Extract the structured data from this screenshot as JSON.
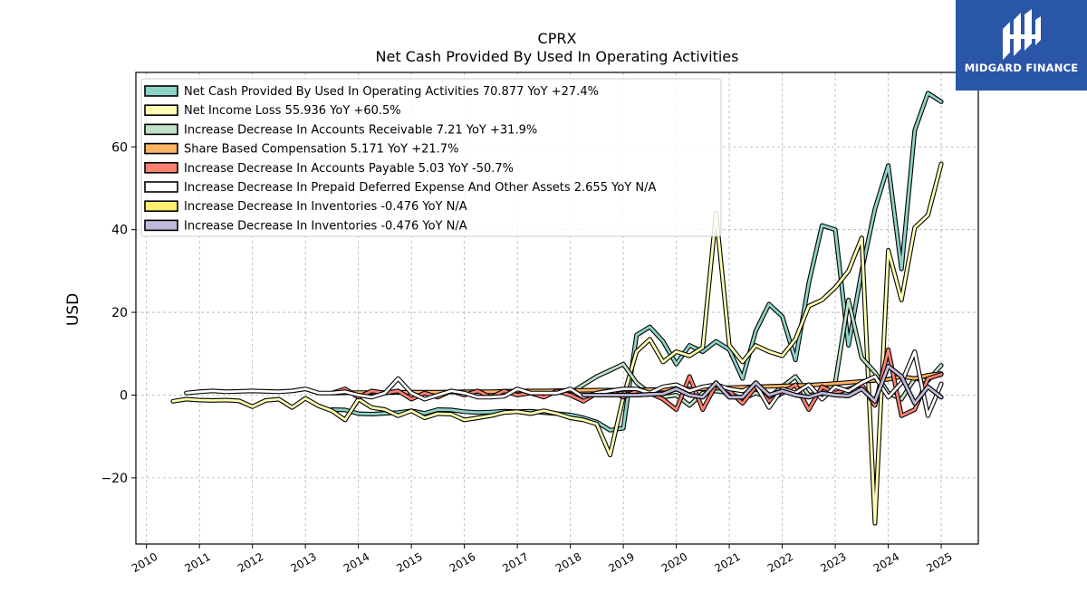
{
  "brand": {
    "name": "MIDGARD FINANCE",
    "bg_color": "#2a56a8",
    "icon": "midgard-logo-icon"
  },
  "chart_data": {
    "type": "line",
    "title": "CPRX",
    "subtitle": "Net Cash Provided By Used In Operating Activities",
    "xlabel": "",
    "ylabel": "USD",
    "xlim": [
      2009.8,
      2025.7
    ],
    "ylim": [
      -36,
      78
    ],
    "x_ticks": [
      "2010",
      "2011",
      "2012",
      "2013",
      "2014",
      "2015",
      "2016",
      "2017",
      "2018",
      "2019",
      "2020",
      "2021",
      "2022",
      "2023",
      "2024",
      "2025"
    ],
    "y_ticks": [
      -20,
      0,
      20,
      40,
      60
    ],
    "y_tick_labels": [
      "−20",
      "0",
      "20",
      "40",
      "60"
    ],
    "grid": true,
    "legend_position": "top-left",
    "series": [
      {
        "name": "Net Cash Provided By Used In Operating Activities",
        "legend_label": "Net Cash Provided By Used In Operating Activities  70.877 YoY +27.4%",
        "color": "#8dd3c7",
        "x": [
          2013.5,
          2013.75,
          2014.0,
          2014.25,
          2014.5,
          2014.75,
          2015.0,
          2015.25,
          2015.5,
          2015.75,
          2016.0,
          2016.25,
          2016.5,
          2016.75,
          2017.0,
          2017.25,
          2017.5,
          2017.75,
          2018.0,
          2018.25,
          2018.5,
          2018.75,
          2019.0,
          2019.25,
          2019.5,
          2019.75,
          2020.0,
          2020.25,
          2020.5,
          2020.75,
          2021.0,
          2021.25,
          2021.5,
          2021.75,
          2022.0,
          2022.25,
          2022.5,
          2022.75,
          2023.0,
          2023.25,
          2023.5,
          2023.75,
          2024.0,
          2024.25,
          2024.5,
          2024.75,
          2025.0
        ],
        "y": [
          -3.5,
          -3.6,
          -4.5,
          -4.6,
          -4.4,
          -4.2,
          -3.8,
          -4.4,
          -3.5,
          -3.6,
          -4.0,
          -4.2,
          -4.1,
          -3.9,
          -4.0,
          -3.9,
          -4.2,
          -4.5,
          -4.8,
          -5.5,
          -6.5,
          -8.5,
          -8.0,
          14.5,
          16.5,
          13.0,
          7.5,
          12.0,
          10.5,
          13.0,
          11.0,
          4.0,
          15.5,
          22.0,
          19.0,
          8.5,
          27.0,
          41.0,
          40.0,
          12.0,
          30.0,
          45.0,
          55.5,
          30.5,
          64.0,
          73.0,
          70.9
        ]
      },
      {
        "name": "Net Income Loss",
        "legend_label": "Net Income Loss  55.936 YoY +60.5%",
        "color": "#ffffb3",
        "x": [
          2010.5,
          2010.75,
          2011.0,
          2011.25,
          2011.5,
          2011.75,
          2012.0,
          2012.25,
          2012.5,
          2012.75,
          2013.0,
          2013.25,
          2013.5,
          2013.75,
          2014.0,
          2014.25,
          2014.5,
          2014.75,
          2015.0,
          2015.25,
          2015.5,
          2015.75,
          2016.0,
          2016.25,
          2016.5,
          2016.75,
          2017.0,
          2017.25,
          2017.5,
          2017.75,
          2018.0,
          2018.25,
          2018.5,
          2018.75,
          2019.0,
          2019.25,
          2019.5,
          2019.75,
          2020.0,
          2020.25,
          2020.5,
          2020.75,
          2021.0,
          2021.25,
          2021.5,
          2021.75,
          2022.0,
          2022.25,
          2022.5,
          2022.75,
          2023.0,
          2023.25,
          2023.5,
          2023.75,
          2024.0,
          2024.25,
          2024.5,
          2024.75,
          2025.0
        ],
        "y": [
          -1.5,
          -1.0,
          -1.2,
          -1.3,
          -1.2,
          -1.4,
          -2.8,
          -1.3,
          -1.0,
          -3.0,
          -0.8,
          -2.6,
          -3.8,
          -6.0,
          -1.0,
          -3.0,
          -3.5,
          -5.0,
          -3.8,
          -5.5,
          -4.5,
          -4.6,
          -6.0,
          -5.5,
          -5.0,
          -4.2,
          -4.0,
          -4.5,
          -3.8,
          -4.5,
          -5.5,
          -6.0,
          -7.0,
          -14.5,
          -0.5,
          10.5,
          13.5,
          8.0,
          10.5,
          9.5,
          11.5,
          44.0,
          12.0,
          8.0,
          12.0,
          10.5,
          9.5,
          13.5,
          21.5,
          23.0,
          26.0,
          30.0,
          38.0,
          -31.0,
          35.0,
          23.0,
          40.5,
          43.5,
          55.9
        ]
      },
      {
        "name": "Increase Decrease In Accounts Receivable",
        "legend_label": "Increase Decrease In Accounts Receivable  7.21 YoY +31.9%",
        "color": "#bfe1c5",
        "x": [
          2018.0,
          2018.25,
          2018.5,
          2018.75,
          2019.0,
          2019.25,
          2019.5,
          2019.75,
          2020.0,
          2020.25,
          2020.5,
          2020.75,
          2021.0,
          2021.25,
          2021.5,
          2021.75,
          2022.0,
          2022.25,
          2022.5,
          2022.75,
          2023.0,
          2023.25,
          2023.5,
          2023.75,
          2024.0,
          2024.25,
          2024.5,
          2024.75,
          2025.0
        ],
        "y": [
          0.5,
          2.5,
          4.5,
          6.0,
          7.5,
          3.0,
          0.5,
          -0.5,
          0.0,
          -2.5,
          0.5,
          1.0,
          0.5,
          -1.0,
          0.5,
          -0.5,
          2.0,
          4.5,
          0.0,
          0.5,
          3.0,
          23.0,
          9.0,
          5.5,
          0.5,
          -1.0,
          4.0,
          3.5,
          7.2
        ]
      },
      {
        "name": "Share Based Compensation",
        "legend_label": "Share Based Compensation  5.171 YoY +21.7%",
        "color": "#fdb462",
        "x": [
          2013.5,
          2014.0,
          2014.5,
          2015.0,
          2015.5,
          2016.0,
          2016.5,
          2017.0,
          2017.5,
          2018.0,
          2018.5,
          2019.0,
          2019.5,
          2020.0,
          2020.5,
          2021.0,
          2021.5,
          2022.0,
          2022.5,
          2023.0,
          2023.5,
          2024.0,
          2024.25,
          2024.5,
          2024.75,
          2025.0
        ],
        "y": [
          0.5,
          0.6,
          0.6,
          0.7,
          0.7,
          0.8,
          0.8,
          1.0,
          1.0,
          1.1,
          1.2,
          1.2,
          1.3,
          1.5,
          1.5,
          1.8,
          2.0,
          2.2,
          2.4,
          2.8,
          3.3,
          3.8,
          4.5,
          4.0,
          4.8,
          5.2
        ]
      },
      {
        "name": "Increase Decrease In Accounts Payable",
        "legend_label": "Increase Decrease In Accounts Payable  5.03 YoY -50.7%",
        "color": "#fb8072",
        "x": [
          2013.5,
          2013.75,
          2014.0,
          2014.25,
          2014.5,
          2014.75,
          2015.0,
          2015.25,
          2015.5,
          2015.75,
          2016.0,
          2016.25,
          2016.5,
          2016.75,
          2017.0,
          2017.25,
          2017.5,
          2017.75,
          2018.0,
          2018.25,
          2018.5,
          2018.75,
          2019.0,
          2019.25,
          2019.5,
          2019.75,
          2020.0,
          2020.25,
          2020.5,
          2020.75,
          2021.0,
          2021.25,
          2021.5,
          2021.75,
          2022.0,
          2022.25,
          2022.5,
          2022.75,
          2023.0,
          2023.25,
          2023.5,
          2023.75,
          2024.0,
          2024.25,
          2024.5,
          2024.75,
          2025.0
        ],
        "y": [
          0.5,
          1.5,
          -0.5,
          1.0,
          0.5,
          1.0,
          -1.0,
          0.5,
          -0.5,
          1.0,
          0.0,
          1.0,
          -0.5,
          1.0,
          0.0,
          0.5,
          -0.5,
          1.0,
          0.0,
          -1.5,
          0.5,
          1.0,
          -0.5,
          1.0,
          0.5,
          -1.0,
          -3.5,
          4.5,
          -3.5,
          2.5,
          1.0,
          -2.0,
          2.0,
          -1.5,
          0.5,
          2.5,
          -3.5,
          2.0,
          0.5,
          1.5,
          2.5,
          -2.5,
          11.0,
          -5.0,
          -3.5,
          4.0,
          5.0
        ]
      },
      {
        "name": "Increase Decrease In Prepaid Deferred Expense And Other Assets",
        "legend_label": "Increase Decrease In Prepaid Deferred Expense And Other Assets  2.655 YoY N/A",
        "color": "#ffffff",
        "x": [
          2010.75,
          2011.0,
          2011.25,
          2011.5,
          2011.75,
          2012.0,
          2012.25,
          2012.5,
          2012.75,
          2013.0,
          2013.25,
          2013.5,
          2013.75,
          2014.0,
          2014.25,
          2014.5,
          2014.75,
          2015.0,
          2015.25,
          2015.5,
          2015.75,
          2016.0,
          2016.25,
          2016.5,
          2016.75,
          2017.0,
          2017.25,
          2017.5,
          2017.75,
          2018.0,
          2018.25,
          2018.5,
          2018.75,
          2019.0,
          2019.25,
          2019.5,
          2019.75,
          2020.0,
          2020.25,
          2020.5,
          2020.75,
          2021.0,
          2021.25,
          2021.5,
          2021.75,
          2022.0,
          2022.25,
          2022.5,
          2022.75,
          2023.0,
          2023.25,
          2023.5,
          2023.75,
          2024.0,
          2024.25,
          2024.5,
          2024.75,
          2025.0
        ],
        "y": [
          0.5,
          0.8,
          1.0,
          0.8,
          0.9,
          1.0,
          0.9,
          0.8,
          1.0,
          1.5,
          0.5,
          0.5,
          0.8,
          0.0,
          -0.5,
          0.5,
          4.0,
          0.5,
          -1.0,
          0.0,
          1.0,
          0.5,
          -0.5,
          -0.5,
          -0.3,
          1.5,
          0.5,
          0.5,
          0.5,
          1.5,
          -0.5,
          0.5,
          1.0,
          1.5,
          1.5,
          0.5,
          2.0,
          2.5,
          1.0,
          2.0,
          2.5,
          1.5,
          1.0,
          2.5,
          -3.0,
          1.5,
          0.5,
          2.5,
          -1.0,
          2.0,
          1.0,
          3.0,
          4.5,
          -0.5,
          3.0,
          10.5,
          -5.0,
          2.7
        ]
      },
      {
        "name": "Increase Decrease In Inventories",
        "legend_label": "Increase Decrease In Inventories  -0.476 YoY N/A",
        "color": "#ffed6f",
        "x": [
          2018.25,
          2018.5,
          2018.75,
          2019.0,
          2019.25,
          2019.5,
          2019.75,
          2020.0,
          2020.25,
          2020.5,
          2020.75,
          2021.0,
          2021.25,
          2021.5,
          2021.75,
          2022.0,
          2022.25,
          2022.5,
          2022.75,
          2023.0,
          2023.25,
          2023.5,
          2023.75,
          2024.0,
          2024.25,
          2024.5,
          2024.75,
          2025.0
        ],
        "y": [
          0.0,
          0.0,
          0.0,
          0.0,
          0.0,
          0.2,
          0.3,
          1.5,
          0.0,
          -0.5,
          3.0,
          -0.5,
          -0.5,
          3.0,
          0.0,
          1.0,
          0.0,
          -0.5,
          0.5,
          0.0,
          -0.2,
          1.5,
          -1.5,
          7.0,
          4.5,
          -2.0,
          2.0,
          -0.5
        ]
      },
      {
        "name": "Increase Decrease In Inventories",
        "legend_label": "Increase Decrease In Inventories  -0.476 YoY N/A",
        "color": "#bebada",
        "x": [
          2018.25,
          2018.5,
          2018.75,
          2019.0,
          2019.25,
          2019.5,
          2019.75,
          2020.0,
          2020.25,
          2020.5,
          2020.75,
          2021.0,
          2021.25,
          2021.5,
          2021.75,
          2022.0,
          2022.25,
          2022.5,
          2022.75,
          2023.0,
          2023.25,
          2023.5,
          2023.75,
          2024.0,
          2024.25,
          2024.5,
          2024.75,
          2025.0
        ],
        "y": [
          0.0,
          0.0,
          0.0,
          0.0,
          0.0,
          0.2,
          0.3,
          1.5,
          0.0,
          -0.5,
          3.0,
          -0.5,
          -0.5,
          3.0,
          0.0,
          1.0,
          0.0,
          -0.5,
          0.5,
          0.0,
          -0.2,
          1.5,
          -1.5,
          7.0,
          4.5,
          -2.0,
          2.0,
          -0.5
        ]
      }
    ]
  }
}
